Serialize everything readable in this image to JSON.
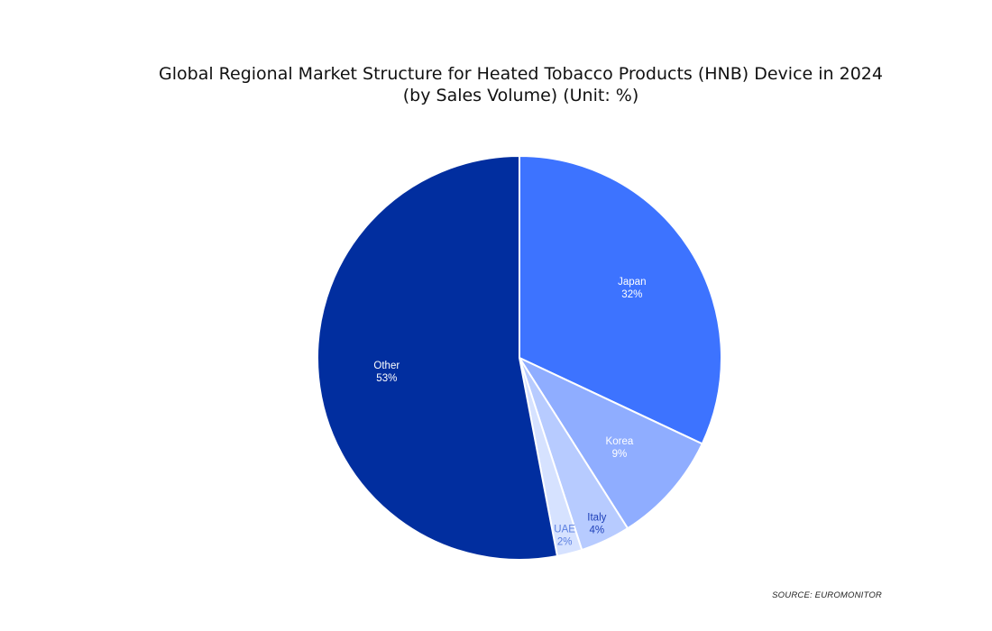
{
  "chart_data": {
    "type": "pie",
    "title": "Global Regional Market Structure for Heated Tobacco Products (HNB) Device in 2024",
    "subtitle": "(by Sales Volume) (Unit: %)",
    "unit": "%",
    "slices": [
      {
        "label": "Japan",
        "value": 32,
        "display": "32%",
        "color": "#3d73ff",
        "label_color": "#ffffff"
      },
      {
        "label": "Korea",
        "value": 9,
        "display": "9%",
        "color": "#8fadff",
        "label_color": "#ffffff"
      },
      {
        "label": "Italy",
        "value": 4,
        "display": "4%",
        "color": "#b7cbff",
        "label_color": "#1d3fb8"
      },
      {
        "label": "UAE",
        "value": 2,
        "display": "2%",
        "color": "#d6e2ff",
        "label_color": "#5b7fe0"
      },
      {
        "label": "Other",
        "value": 53,
        "display": "53%",
        "color": "#012e9f",
        "label_color": "#ffffff"
      }
    ],
    "start": "12 o'clock",
    "direction": "clockwise",
    "legend": "none",
    "slice_border_color": "#ffffff"
  },
  "source": "SOURCE: EUROMONITOR"
}
